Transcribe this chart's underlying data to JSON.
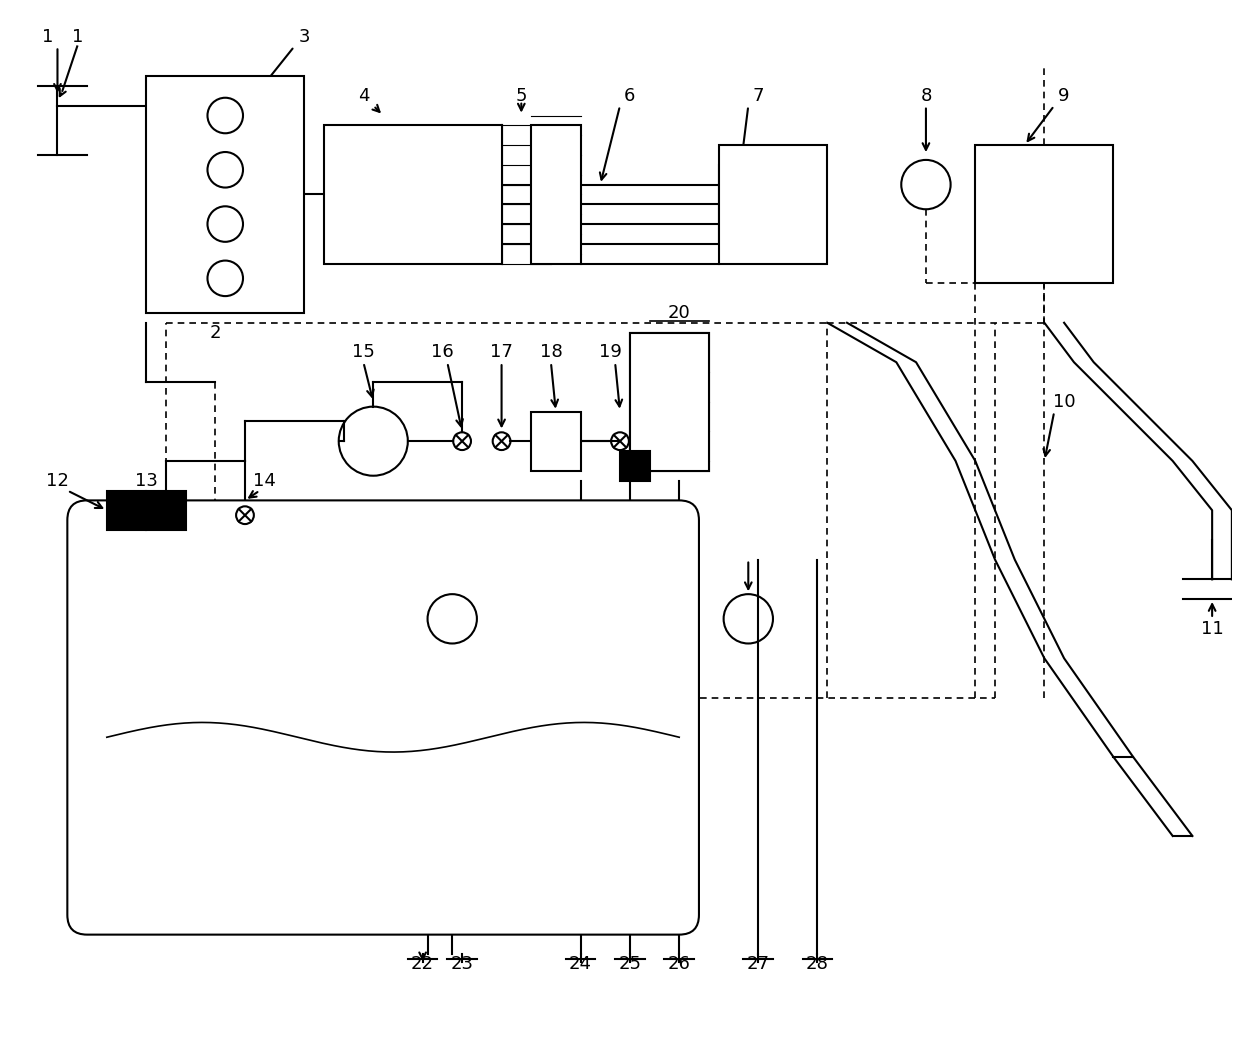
{
  "bg_color": "#ffffff",
  "line_color": "#000000",
  "dashed_color": "#555555",
  "label_fontsize": 13,
  "figsize": [
    12.4,
    10.6
  ],
  "dpi": 100
}
